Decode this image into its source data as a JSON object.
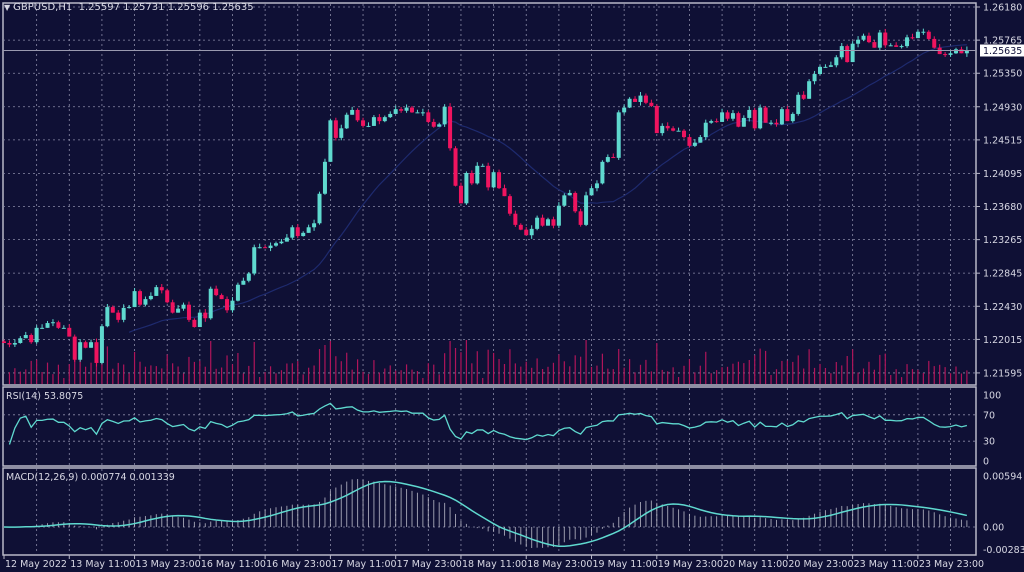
{
  "header": {
    "symbol": "GBPUSD,H1",
    "open": "1.25597",
    "high": "1.25731",
    "low": "1.25596",
    "close": "1.25635",
    "menu_icon": "triangle-down-icon"
  },
  "colors": {
    "background": "#0f1035",
    "bull": "#5fd9cf",
    "bear": "#f0145f",
    "grid": "#8a8aa6",
    "volume": "#b0155a",
    "moving_average": "#1e2a6e",
    "indicator_line": "#5fd9cf",
    "macd_histogram": "#c8c8d4"
  },
  "chart_data": {
    "type": "candlestick",
    "symbol": "GBPUSD",
    "timeframe": "H1",
    "ylim": [
      1.2149,
      1.2625
    ],
    "y_ticks": [
      "1.26180",
      "1.25765",
      "1.25350",
      "1.24930",
      "1.24515",
      "1.24095",
      "1.23680",
      "1.23265",
      "1.22845",
      "1.22430",
      "1.22015",
      "1.21595"
    ],
    "x_ticks": [
      "12 May 2022",
      "13 May 11:00",
      "13 May 23:00",
      "16 May 11:00",
      "16 May 23:00",
      "17 May 11:00",
      "17 May 23:00",
      "18 May 11:00",
      "18 May 23:00",
      "19 May 11:00",
      "19 May 23:00",
      "20 May 11:00",
      "20 May 23:00",
      "23 May 11:00",
      "23 May 23:00"
    ],
    "current_price": "1.25635",
    "grid": true,
    "closes": [
      1.2197,
      1.2195,
      1.2197,
      1.2203,
      1.2207,
      1.2198,
      1.2216,
      1.2216,
      1.2222,
      1.2223,
      1.2216,
      1.2216,
      1.2205,
      1.2176,
      1.2198,
      1.2191,
      1.2198,
      1.2172,
      1.2218,
      1.2242,
      1.2235,
      1.2226,
      1.2241,
      1.2242,
      1.2262,
      1.2245,
      1.2252,
      1.2256,
      1.2267,
      1.2263,
      1.2248,
      1.2235,
      1.224,
      1.2245,
      1.2226,
      1.2217,
      1.2235,
      1.2228,
      1.2265,
      1.2257,
      1.2252,
      1.2238,
      1.225,
      1.227,
      1.2275,
      1.2284,
      1.2317,
      1.2317,
      1.2316,
      1.2319,
      1.2322,
      1.2324,
      1.2329,
      1.2342,
      1.2331,
      1.2335,
      1.2342,
      1.2347,
      1.2384,
      1.2424,
      1.2476,
      1.2454,
      1.2466,
      1.2483,
      1.2489,
      1.2476,
      1.2469,
      1.2469,
      1.248,
      1.2475,
      1.248,
      1.2484,
      1.249,
      1.2488,
      1.2492,
      1.2486,
      1.2486,
      1.2486,
      1.2474,
      1.2468,
      1.2471,
      1.2493,
      1.2441,
      1.2394,
      1.2372,
      1.241,
      1.2397,
      1.2419,
      1.2419,
      1.2392,
      1.2411,
      1.2391,
      1.2381,
      1.2359,
      1.2345,
      1.2339,
      1.2332,
      1.234,
      1.2354,
      1.2344,
      1.2352,
      1.2344,
      1.2369,
      1.2382,
      1.2385,
      1.2362,
      1.2345,
      1.2382,
      1.2391,
      1.2397,
      1.2424,
      1.243,
      1.2429,
      1.2486,
      1.2492,
      1.2503,
      1.2499,
      1.2507,
      1.2498,
      1.2494,
      1.246,
      1.2469,
      1.2466,
      1.2463,
      1.2463,
      1.2455,
      1.2444,
      1.2448,
      1.2455,
      1.2473,
      1.2475,
      1.2474,
      1.2486,
      1.2478,
      1.2485,
      1.2468,
      1.2479,
      1.2489,
      1.2466,
      1.2492,
      1.2473,
      1.2473,
      1.2471,
      1.249,
      1.2475,
      1.2484,
      1.2508,
      1.2503,
      1.2525,
      1.2534,
      1.2543,
      1.2543,
      1.2545,
      1.2555,
      1.2569,
      1.2549,
      1.2572,
      1.2577,
      1.2582,
      1.2574,
      1.2567,
      1.2586,
      1.257,
      1.257,
      1.2568,
      1.2569,
      1.258,
      1.2579,
      1.2587,
      1.2587,
      1.2578,
      1.2567,
      1.2559,
      1.2558,
      1.256,
      1.2565,
      1.256,
      1.2564
    ]
  },
  "rsi": {
    "label": "RSI(14) 53.8075",
    "ticks": [
      "100",
      "70",
      "30",
      "0"
    ]
  },
  "macd": {
    "label": "MACD(12,26,9) 0.000774 0.001339",
    "ticks": [
      "0.00594",
      "0.00",
      "-0.002836"
    ]
  }
}
